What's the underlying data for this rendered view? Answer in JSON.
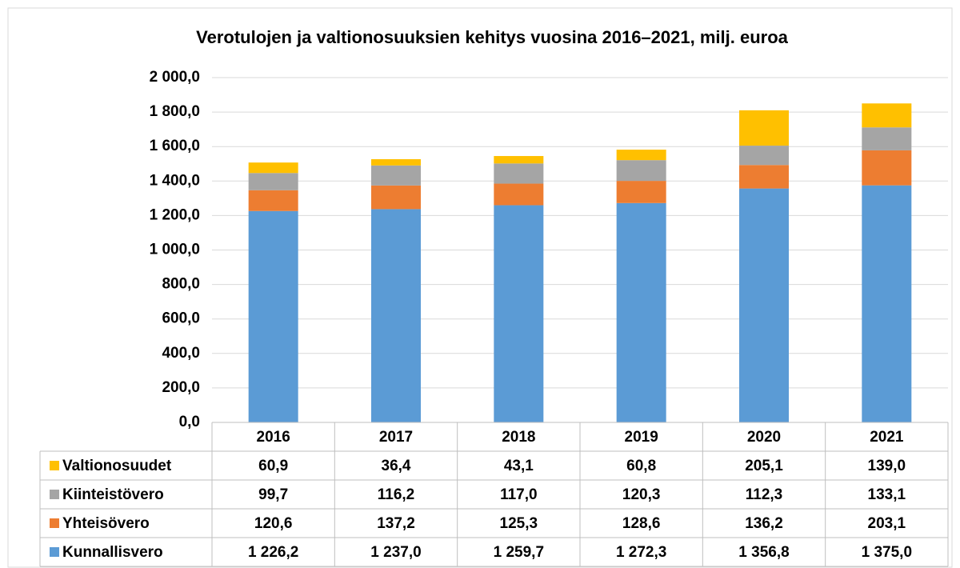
{
  "chart_data": {
    "type": "bar",
    "stacked": true,
    "title": "Verotulojen ja valtionosuuksien kehitys vuosina 2016–2021, milj. euroa",
    "categories": [
      "2016",
      "2017",
      "2018",
      "2019",
      "2020",
      "2021"
    ],
    "series": [
      {
        "name": "Kunnallisvero",
        "color": "#5b9bd5",
        "values": [
          1226.2,
          1237.0,
          1259.7,
          1272.3,
          1356.8,
          1375.0
        ],
        "value_labels": [
          "1 226,2",
          "1 237,0",
          "1 259,7",
          "1 272,3",
          "1 356,8",
          "1 375,0"
        ]
      },
      {
        "name": "Yhteisövero",
        "color": "#ed7d31",
        "values": [
          120.6,
          137.2,
          125.3,
          128.6,
          136.2,
          203.1
        ],
        "value_labels": [
          "120,6",
          "137,2",
          "125,3",
          "128,6",
          "136,2",
          "203,1"
        ]
      },
      {
        "name": "Kiinteistövero",
        "color": "#a5a5a5",
        "values": [
          99.7,
          116.2,
          117.0,
          120.3,
          112.3,
          133.1
        ],
        "value_labels": [
          "99,7",
          "116,2",
          "117,0",
          "120,3",
          "112,3",
          "133,1"
        ]
      },
      {
        "name": "Valtionosuudet",
        "color": "#ffc000",
        "values": [
          60.9,
          36.4,
          43.1,
          60.8,
          205.1,
          139.0
        ],
        "value_labels": [
          "60,9",
          "36,4",
          "43,1",
          "60,8",
          "205,1",
          "139,0"
        ]
      }
    ],
    "ylim": [
      0,
      2000
    ],
    "yticks": [
      {
        "value": 0,
        "label": "0,0"
      },
      {
        "value": 200,
        "label": "200,0"
      },
      {
        "value": 400,
        "label": "400,0"
      },
      {
        "value": 600,
        "label": "600,0"
      },
      {
        "value": 800,
        "label": "800,0"
      },
      {
        "value": 1000,
        "label": "1 000,0"
      },
      {
        "value": 1200,
        "label": "1 200,0"
      },
      {
        "value": 1400,
        "label": "1 400,0"
      },
      {
        "value": 1600,
        "label": "1 600,0"
      },
      {
        "value": 1800,
        "label": "1 800,0"
      },
      {
        "value": 2000,
        "label": "2 000,0"
      }
    ],
    "grid": true,
    "legend": "table"
  }
}
